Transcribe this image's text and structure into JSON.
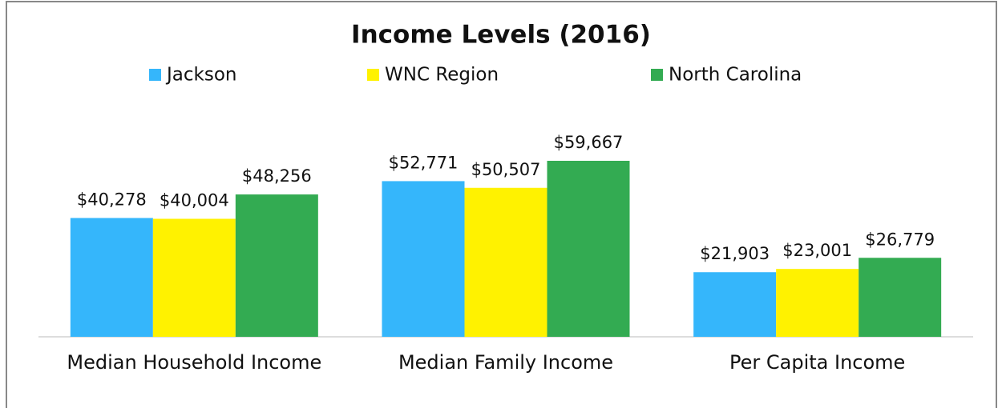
{
  "chart_data": {
    "type": "bar",
    "title": "Income Levels (2016)",
    "categories": [
      "Median Household Income",
      "Median Family Income",
      "Per Capita Income"
    ],
    "series": [
      {
        "name": "Jackson",
        "color": "#35b6fb",
        "values": [
          40278,
          52771,
          21903
        ],
        "value_labels": [
          "$40,278",
          "$52,771",
          "$21,903"
        ]
      },
      {
        "name": "WNC Region",
        "color": "#fff200",
        "values": [
          40004,
          50507,
          23001
        ],
        "value_labels": [
          "$40,004",
          "$50,507",
          "$23,001"
        ]
      },
      {
        "name": "North Carolina",
        "color": "#33ab52",
        "values": [
          48256,
          59667,
          26779
        ],
        "value_labels": [
          "$48,256",
          "$59,667",
          "$26,779"
        ]
      }
    ],
    "legend": "top"
  }
}
